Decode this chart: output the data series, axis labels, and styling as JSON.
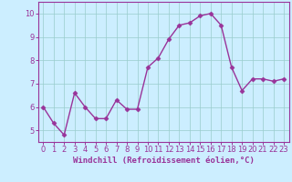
{
  "x": [
    0,
    1,
    2,
    3,
    4,
    5,
    6,
    7,
    8,
    9,
    10,
    11,
    12,
    13,
    14,
    15,
    16,
    17,
    18,
    19,
    20,
    21,
    22,
    23
  ],
  "y": [
    6.0,
    5.3,
    4.8,
    6.6,
    6.0,
    5.5,
    5.5,
    6.3,
    5.9,
    5.9,
    7.7,
    8.1,
    8.9,
    9.5,
    9.6,
    9.9,
    10.0,
    9.5,
    7.7,
    6.7,
    7.2,
    7.2,
    7.1,
    7.2
  ],
  "line_color": "#993399",
  "marker": "D",
  "markersize": 2.5,
  "linewidth": 1.0,
  "bg_color": "#cceeff",
  "grid_color": "#99cccc",
  "xlabel": "Windchill (Refroidissement éolien,°C)",
  "ylabel": "",
  "xlim": [
    -0.5,
    23.5
  ],
  "ylim": [
    4.5,
    10.5
  ],
  "yticks": [
    5,
    6,
    7,
    8,
    9,
    10
  ],
  "xticks": [
    0,
    1,
    2,
    3,
    4,
    5,
    6,
    7,
    8,
    9,
    10,
    11,
    12,
    13,
    14,
    15,
    16,
    17,
    18,
    19,
    20,
    21,
    22,
    23
  ],
  "xlabel_color": "#993399",
  "tick_color": "#993399",
  "axis_color": "#993399",
  "tick_fontsize": 6.0,
  "xlabel_fontsize": 6.5
}
